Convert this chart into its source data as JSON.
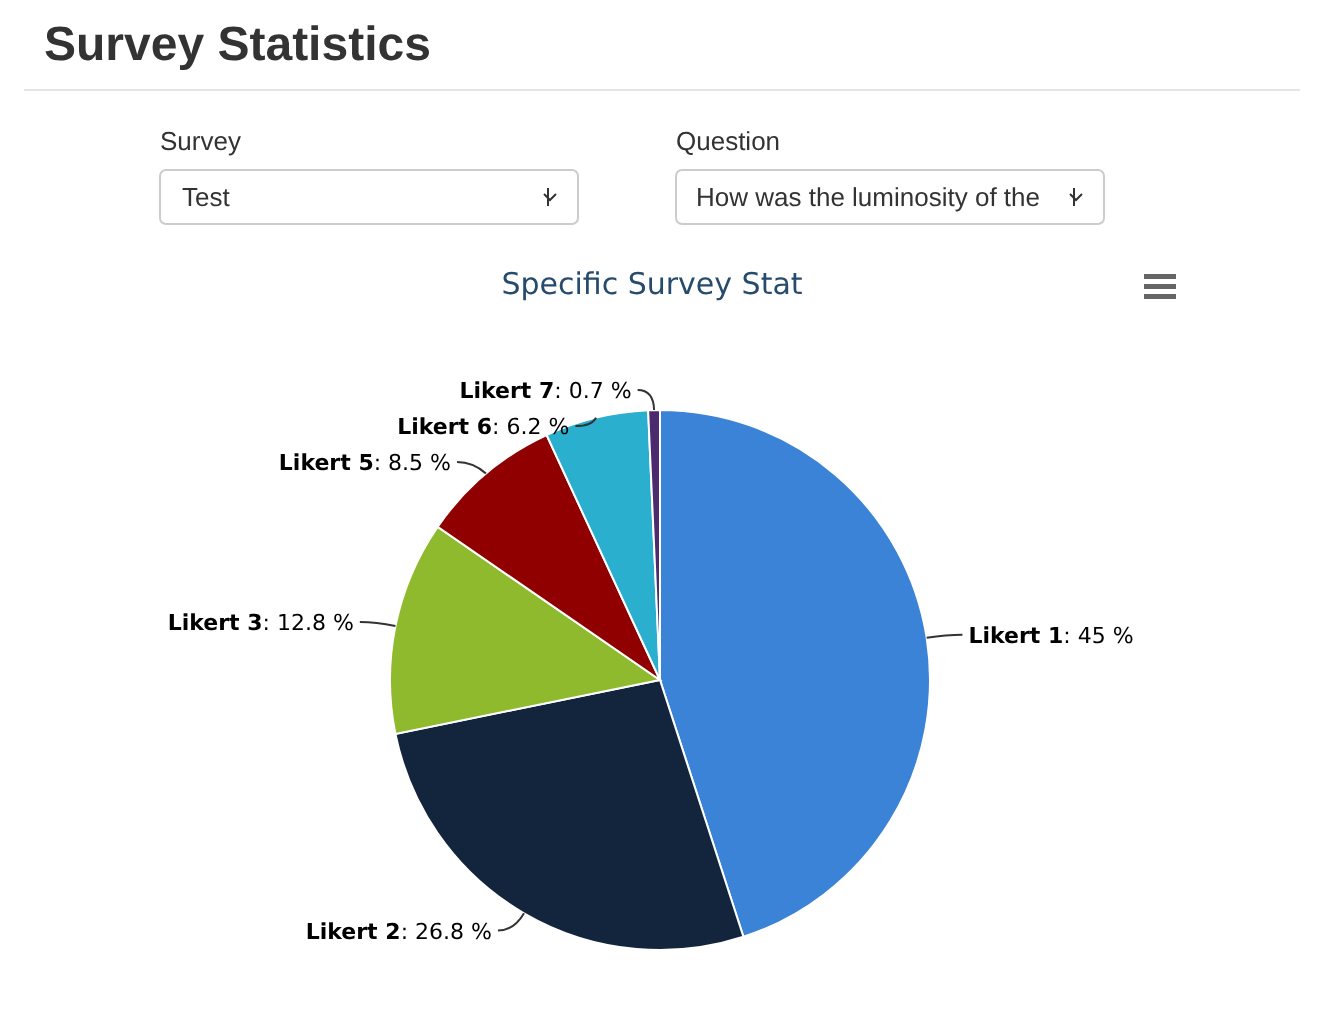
{
  "chart_data": {
    "type": "pie",
    "title": "Specific Survey Stat",
    "annotations": [
      "Survey Statistics",
      "Survey",
      "Test",
      "Question",
      "How was the luminosity of the"
    ],
    "categories": [
      "Likert 1",
      "Likert 2",
      "Likert 3",
      "Likert 5",
      "Likert 6",
      "Likert 7"
    ],
    "values": [
      45,
      26.8,
      12.8,
      8.5,
      6.2,
      0.7
    ],
    "value_labels": [
      ": 45 %",
      ": 26.8 %",
      ": 12.8 %",
      ": 8.5 %",
      ": 6.2 %",
      ": 0.7 %"
    ],
    "colors": [
      "#3a83d6",
      "#13253d",
      "#8fba2e",
      "#910000",
      "#2aafcf",
      "#4b2a6e"
    ]
  }
}
